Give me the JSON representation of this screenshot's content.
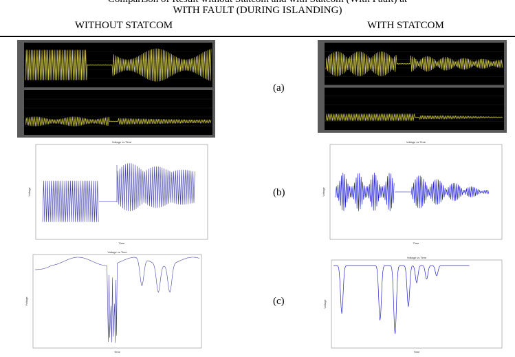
{
  "caption": "Comparison of Result without Statcom and with Statcom (With Fault) at",
  "header": {
    "title": "WITH FAULT (DURING ISLANDING)",
    "left": "WITHOUT STATCOM",
    "right": "WITH STATCOM"
  },
  "rows": [
    {
      "label": "(a)"
    },
    {
      "label": "(b)"
    },
    {
      "label": "(c)"
    }
  ],
  "plot": {
    "title": "Voltage vs Time",
    "xlabel": "Time",
    "ylabel": "Voltage"
  }
}
